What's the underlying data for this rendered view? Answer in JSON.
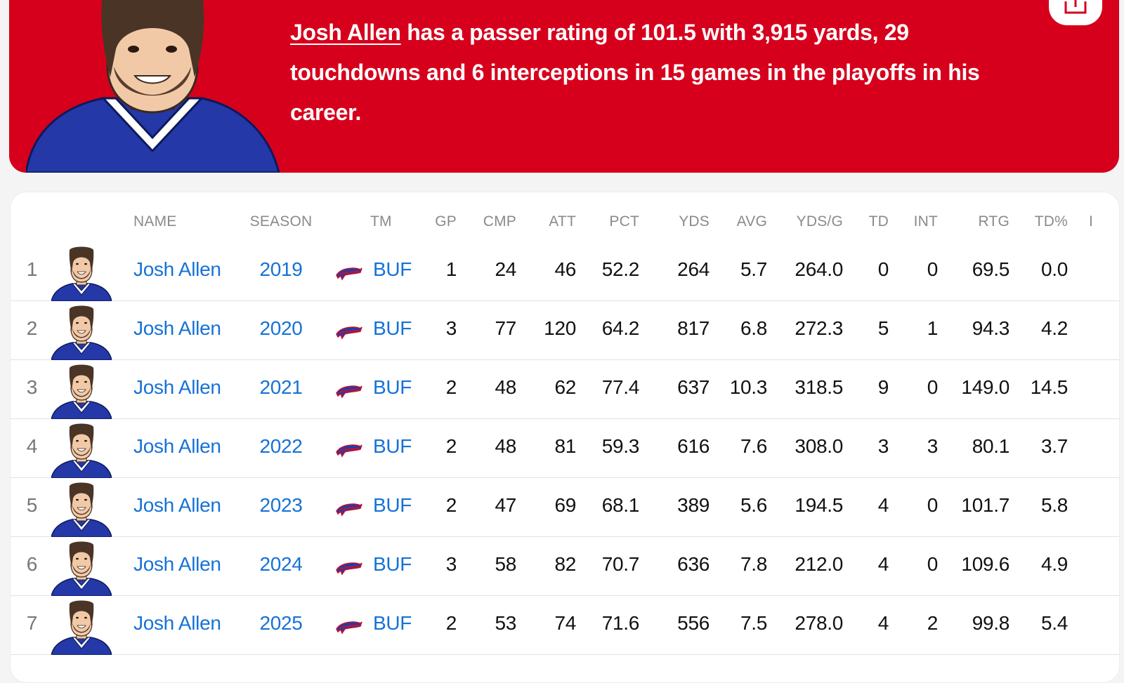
{
  "hero": {
    "player_link": "Josh Allen",
    "summary": " has a passer rating of 101.5 with 3,915 yards, 29 touchdowns and 6 interceptions in 15 games in the playoffs in his career.",
    "avatar_icon": "player-avatar-illustration",
    "share_icon": "share-icon",
    "colors": {
      "background": "#d6001c",
      "jersey": "#2438a8"
    }
  },
  "table": {
    "headers": {
      "name": "NAME",
      "season": "SEASON",
      "tm": "TM",
      "gp": "GP",
      "cmp": "CMP",
      "att": "ATT",
      "pct": "PCT",
      "yds": "YDS",
      "avg": "AVG",
      "ydsg": "YDS/G",
      "td": "TD",
      "int": "INT",
      "rtg": "RTG",
      "tdpct": "TD%",
      "cut": "I"
    },
    "link_color": "#1672d6",
    "rows": [
      {
        "rank": "1",
        "name": "Josh Allen",
        "season": "2019",
        "tm": "BUF",
        "gp": "1",
        "cmp": "24",
        "att": "46",
        "pct": "52.2",
        "yds": "264",
        "avg": "5.7",
        "ydsg": "264.0",
        "td": "0",
        "int": "0",
        "rtg": "69.5",
        "tdpct": "0.0"
      },
      {
        "rank": "2",
        "name": "Josh Allen",
        "season": "2020",
        "tm": "BUF",
        "gp": "3",
        "cmp": "77",
        "att": "120",
        "pct": "64.2",
        "yds": "817",
        "avg": "6.8",
        "ydsg": "272.3",
        "td": "5",
        "int": "1",
        "rtg": "94.3",
        "tdpct": "4.2"
      },
      {
        "rank": "3",
        "name": "Josh Allen",
        "season": "2021",
        "tm": "BUF",
        "gp": "2",
        "cmp": "48",
        "att": "62",
        "pct": "77.4",
        "yds": "637",
        "avg": "10.3",
        "ydsg": "318.5",
        "td": "9",
        "int": "0",
        "rtg": "149.0",
        "tdpct": "14.5"
      },
      {
        "rank": "4",
        "name": "Josh Allen",
        "season": "2022",
        "tm": "BUF",
        "gp": "2",
        "cmp": "48",
        "att": "81",
        "pct": "59.3",
        "yds": "616",
        "avg": "7.6",
        "ydsg": "308.0",
        "td": "3",
        "int": "3",
        "rtg": "80.1",
        "tdpct": "3.7"
      },
      {
        "rank": "5",
        "name": "Josh Allen",
        "season": "2023",
        "tm": "BUF",
        "gp": "2",
        "cmp": "47",
        "att": "69",
        "pct": "68.1",
        "yds": "389",
        "avg": "5.6",
        "ydsg": "194.5",
        "td": "4",
        "int": "0",
        "rtg": "101.7",
        "tdpct": "5.8"
      },
      {
        "rank": "6",
        "name": "Josh Allen",
        "season": "2024",
        "tm": "BUF",
        "gp": "3",
        "cmp": "58",
        "att": "82",
        "pct": "70.7",
        "yds": "636",
        "avg": "7.8",
        "ydsg": "212.0",
        "td": "4",
        "int": "0",
        "rtg": "109.6",
        "tdpct": "4.9"
      },
      {
        "rank": "7",
        "name": "Josh Allen",
        "season": "2025",
        "tm": "BUF",
        "gp": "2",
        "cmp": "53",
        "att": "74",
        "pct": "71.6",
        "yds": "556",
        "avg": "7.5",
        "ydsg": "278.0",
        "td": "4",
        "int": "2",
        "rtg": "99.8",
        "tdpct": "5.4"
      }
    ]
  }
}
